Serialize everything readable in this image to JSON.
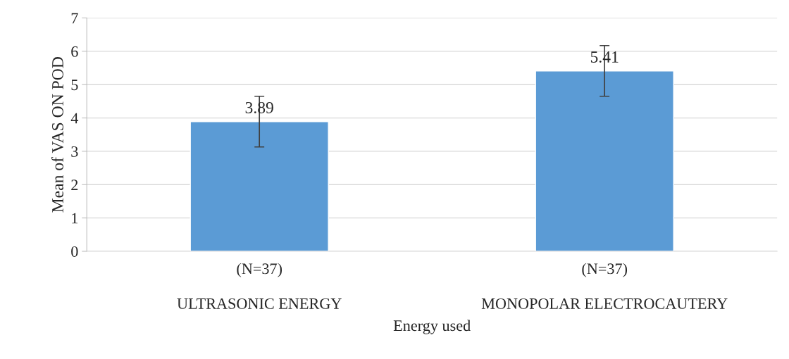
{
  "chart_data": {
    "type": "bar",
    "xlabel": "Energy used",
    "ylabel": "Mean of VAS ON POD",
    "categories": [
      "(N=37)\n\nULTRASONIC ENERGY",
      "(N=37)\n\nMONOPOLAR ELECTROCAUTERY"
    ],
    "values": [
      3.89,
      5.41
    ],
    "errors": [
      0.76,
      0.76
    ],
    "color": "#5b9bd5",
    "ylim": [
      0,
      7
    ],
    "yticks": [
      0,
      1,
      2,
      3,
      4,
      5,
      6,
      7
    ],
    "grid": "y",
    "data_labels": true
  }
}
